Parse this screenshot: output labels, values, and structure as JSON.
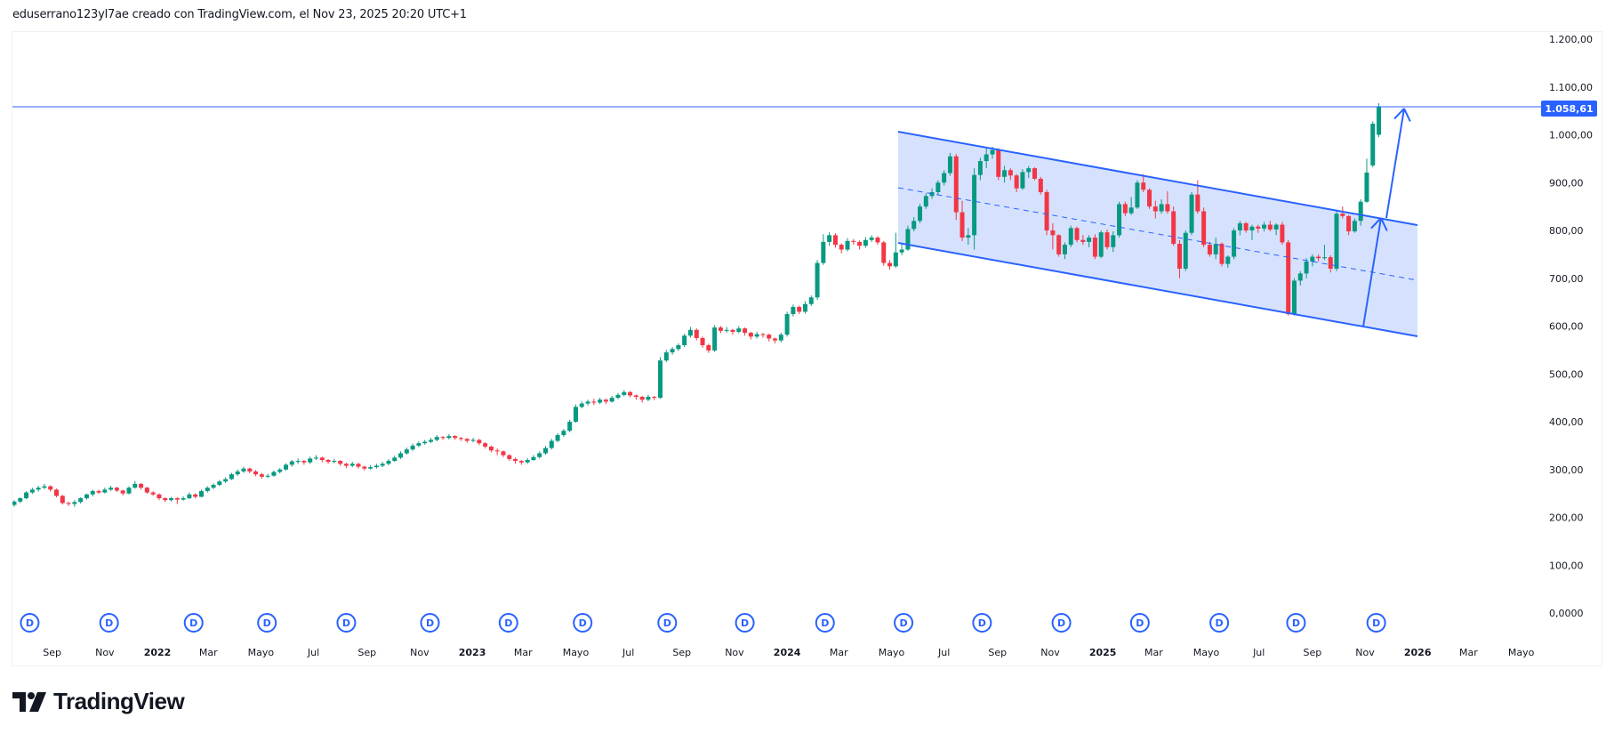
{
  "header": {
    "caption": "eduserrano123yl7ae creado con TradingView.com, el Nov 23, 2025 20:20 UTC+1"
  },
  "footer": {
    "logo_text": "TradingView"
  },
  "colors": {
    "up": "#089981",
    "down": "#f23645",
    "drawing": "#2962ff",
    "channel_fill": "#d4e0fd"
  },
  "chart_data": {
    "type": "candlestick",
    "period": "1W",
    "from": "2021-07-19",
    "to": "2025-11-17",
    "ylim": [
      0,
      1200
    ],
    "grid": false,
    "current_price": {
      "value": 1058.61,
      "label": "1.058,61"
    },
    "y_ticks": [
      {
        "value": 1200,
        "label": "1.200,00"
      },
      {
        "value": 1100,
        "label": "1.100,00"
      },
      {
        "value": 1000,
        "label": "1.000,00"
      },
      {
        "value": 900,
        "label": "900,00"
      },
      {
        "value": 800,
        "label": "800,00"
      },
      {
        "value": 700,
        "label": "700,00"
      },
      {
        "value": 600,
        "label": "600,00"
      },
      {
        "value": 500,
        "label": "500,00"
      },
      {
        "value": 400,
        "label": "400,00"
      },
      {
        "value": 300,
        "label": "300,00"
      },
      {
        "value": 200,
        "label": "200,00"
      },
      {
        "value": 100,
        "label": "100,00"
      },
      {
        "value": 0,
        "label": "0,0000"
      }
    ],
    "x_ticks": [
      {
        "date": "2021-09-01",
        "label": "Sep"
      },
      {
        "date": "2021-11-01",
        "label": "Nov"
      },
      {
        "date": "2022-01-01",
        "label": "2022",
        "year": true
      },
      {
        "date": "2022-03-01",
        "label": "Mar"
      },
      {
        "date": "2022-05-01",
        "label": "Mayo"
      },
      {
        "date": "2022-07-01",
        "label": "Jul"
      },
      {
        "date": "2022-09-01",
        "label": "Sep"
      },
      {
        "date": "2022-11-01",
        "label": "Nov"
      },
      {
        "date": "2023-01-01",
        "label": "2023",
        "year": true
      },
      {
        "date": "2023-03-01",
        "label": "Mar"
      },
      {
        "date": "2023-05-01",
        "label": "Mayo"
      },
      {
        "date": "2023-07-01",
        "label": "Jul"
      },
      {
        "date": "2023-09-01",
        "label": "Sep"
      },
      {
        "date": "2023-11-01",
        "label": "Nov"
      },
      {
        "date": "2024-01-01",
        "label": "2024",
        "year": true
      },
      {
        "date": "2024-03-01",
        "label": "Mar"
      },
      {
        "date": "2024-05-01",
        "label": "Mayo"
      },
      {
        "date": "2024-07-01",
        "label": "Jul"
      },
      {
        "date": "2024-09-01",
        "label": "Sep"
      },
      {
        "date": "2024-11-01",
        "label": "Nov"
      },
      {
        "date": "2025-01-01",
        "label": "2025",
        "year": true
      },
      {
        "date": "2025-03-01",
        "label": "Mar"
      },
      {
        "date": "2025-05-01",
        "label": "Mayo"
      },
      {
        "date": "2025-07-01",
        "label": "Jul"
      },
      {
        "date": "2025-09-01",
        "label": "Sep"
      },
      {
        "date": "2025-11-01",
        "label": "Nov"
      },
      {
        "date": "2026-01-01",
        "label": "2026",
        "year": true
      },
      {
        "date": "2026-03-01",
        "label": "Mar"
      },
      {
        "date": "2026-05-01",
        "label": "Mayo"
      }
    ],
    "dividend_markers": {
      "label": "D",
      "dates": [
        "2021-08-06",
        "2021-11-06",
        "2022-02-12",
        "2022-05-08",
        "2022-08-08",
        "2022-11-13",
        "2023-02-12",
        "2023-05-09",
        "2023-08-15",
        "2023-11-13",
        "2024-02-14",
        "2024-05-15",
        "2024-08-14",
        "2024-11-14",
        "2025-02-13",
        "2025-05-16",
        "2025-08-13",
        "2025-11-14"
      ]
    },
    "ohlc": [
      [
        226,
        236,
        222,
        233
      ],
      [
        233,
        242,
        230,
        240
      ],
      [
        240,
        255,
        238,
        252
      ],
      [
        252,
        262,
        249,
        258
      ],
      [
        258,
        266,
        254,
        262
      ],
      [
        262,
        270,
        259,
        265
      ],
      [
        265,
        267,
        254,
        258
      ],
      [
        258,
        260,
        242,
        245
      ],
      [
        245,
        247,
        227,
        230
      ],
      [
        230,
        233,
        224,
        228
      ],
      [
        228,
        236,
        222,
        232
      ],
      [
        232,
        242,
        229,
        240
      ],
      [
        240,
        250,
        237,
        248
      ],
      [
        248,
        258,
        244,
        255
      ],
      [
        255,
        258,
        249,
        252
      ],
      [
        252,
        262,
        250,
        258
      ],
      [
        258,
        266,
        255,
        262
      ],
      [
        262,
        264,
        253,
        256
      ],
      [
        256,
        258,
        246,
        250
      ],
      [
        250,
        265,
        248,
        262
      ],
      [
        262,
        276,
        260,
        270
      ],
      [
        270,
        272,
        258,
        262
      ],
      [
        262,
        264,
        249,
        252
      ],
      [
        252,
        255,
        245,
        248
      ],
      [
        248,
        250,
        236,
        240
      ],
      [
        240,
        242,
        232,
        236
      ],
      [
        236,
        243,
        233,
        240
      ],
      [
        240,
        242,
        228,
        237
      ],
      [
        237,
        244,
        235,
        240
      ],
      [
        240,
        252,
        238,
        248
      ],
      [
        248,
        250,
        240,
        243
      ],
      [
        243,
        258,
        242,
        255
      ],
      [
        255,
        265,
        252,
        262
      ],
      [
        262,
        271,
        259,
        268
      ],
      [
        268,
        278,
        265,
        275
      ],
      [
        275,
        284,
        272,
        280
      ],
      [
        280,
        293,
        278,
        290
      ],
      [
        290,
        300,
        287,
        296
      ],
      [
        296,
        306,
        293,
        302
      ],
      [
        302,
        304,
        292,
        296
      ],
      [
        296,
        299,
        286,
        290
      ],
      [
        290,
        293,
        281,
        285
      ],
      [
        285,
        291,
        282,
        287
      ],
      [
        287,
        298,
        285,
        295
      ],
      [
        295,
        303,
        292,
        300
      ],
      [
        300,
        313,
        298,
        310
      ],
      [
        310,
        320,
        306,
        317
      ],
      [
        317,
        323,
        312,
        318
      ],
      [
        318,
        320,
        310,
        315
      ],
      [
        315,
        327,
        312,
        323
      ],
      [
        323,
        330,
        320,
        325
      ],
      [
        325,
        327,
        315,
        320
      ],
      [
        320,
        322,
        312,
        316
      ],
      [
        316,
        322,
        313,
        318
      ],
      [
        318,
        320,
        308,
        312
      ],
      [
        312,
        314,
        303,
        308
      ],
      [
        308,
        316,
        305,
        312
      ],
      [
        312,
        314,
        302,
        306
      ],
      [
        306,
        308,
        298,
        302
      ],
      [
        302,
        309,
        300,
        305
      ],
      [
        305,
        312,
        302,
        308
      ],
      [
        308,
        316,
        305,
        312
      ],
      [
        312,
        322,
        309,
        318
      ],
      [
        318,
        329,
        316,
        325
      ],
      [
        325,
        338,
        322,
        334
      ],
      [
        334,
        346,
        331,
        342
      ],
      [
        342,
        354,
        339,
        350
      ],
      [
        350,
        359,
        347,
        355
      ],
      [
        355,
        362,
        352,
        358
      ],
      [
        358,
        366,
        355,
        362
      ],
      [
        362,
        372,
        359,
        368
      ],
      [
        368,
        370,
        362,
        366
      ],
      [
        366,
        374,
        363,
        370
      ],
      [
        370,
        372,
        362,
        366
      ],
      [
        366,
        368,
        360,
        364
      ],
      [
        364,
        366,
        356,
        360
      ],
      [
        360,
        366,
        357,
        362
      ],
      [
        362,
        364,
        351,
        355
      ],
      [
        355,
        357,
        344,
        348
      ],
      [
        348,
        350,
        336,
        340
      ],
      [
        340,
        344,
        330,
        338
      ],
      [
        338,
        340,
        326,
        330
      ],
      [
        330,
        332,
        318,
        322
      ],
      [
        322,
        325,
        312,
        318
      ],
      [
        318,
        320,
        310,
        315
      ],
      [
        315,
        324,
        312,
        320
      ],
      [
        320,
        330,
        318,
        326
      ],
      [
        326,
        338,
        323,
        334
      ],
      [
        334,
        349,
        331,
        345
      ],
      [
        345,
        364,
        342,
        360
      ],
      [
        360,
        376,
        357,
        372
      ],
      [
        372,
        385,
        368,
        381
      ],
      [
        381,
        404,
        378,
        400
      ],
      [
        400,
        436,
        398,
        431
      ],
      [
        431,
        442,
        428,
        438
      ],
      [
        438,
        446,
        434,
        442
      ],
      [
        442,
        448,
        435,
        440
      ],
      [
        440,
        450,
        437,
        446
      ],
      [
        446,
        448,
        437,
        442
      ],
      [
        442,
        454,
        440,
        450
      ],
      [
        450,
        460,
        447,
        456
      ],
      [
        456,
        466,
        453,
        462
      ],
      [
        462,
        464,
        451,
        455
      ],
      [
        455,
        457,
        446,
        452
      ],
      [
        452,
        454,
        440,
        446
      ],
      [
        446,
        456,
        443,
        452
      ],
      [
        452,
        454,
        445,
        450
      ],
      [
        450,
        535,
        448,
        528
      ],
      [
        528,
        550,
        525,
        545
      ],
      [
        545,
        556,
        540,
        552
      ],
      [
        552,
        564,
        548,
        560
      ],
      [
        560,
        584,
        556,
        580
      ],
      [
        580,
        598,
        576,
        592
      ],
      [
        592,
        595,
        570,
        575
      ],
      [
        575,
        578,
        555,
        560
      ],
      [
        560,
        563,
        544,
        549
      ],
      [
        549,
        602,
        546,
        597
      ],
      [
        597,
        600,
        585,
        590
      ],
      [
        590,
        598,
        586,
        592
      ],
      [
        592,
        594,
        582,
        588
      ],
      [
        588,
        600,
        585,
        595
      ],
      [
        595,
        597,
        580,
        586
      ],
      [
        586,
        588,
        572,
        578
      ],
      [
        578,
        588,
        574,
        583
      ],
      [
        583,
        586,
        576,
        582
      ],
      [
        582,
        584,
        568,
        574
      ],
      [
        574,
        576,
        564,
        570
      ],
      [
        570,
        586,
        566,
        582
      ],
      [
        582,
        630,
        578,
        625
      ],
      [
        625,
        645,
        620,
        640
      ],
      [
        640,
        643,
        625,
        630
      ],
      [
        630,
        652,
        626,
        646
      ],
      [
        646,
        664,
        642,
        660
      ],
      [
        660,
        738,
        655,
        732
      ],
      [
        732,
        792,
        728,
        776
      ],
      [
        776,
        796,
        768,
        790
      ],
      [
        790,
        794,
        764,
        770
      ],
      [
        770,
        773,
        752,
        760
      ],
      [
        760,
        784,
        756,
        778
      ],
      [
        778,
        782,
        770,
        776
      ],
      [
        776,
        779,
        760,
        768
      ],
      [
        768,
        786,
        764,
        780
      ],
      [
        780,
        790,
        776,
        785
      ],
      [
        785,
        788,
        770,
        775
      ],
      [
        775,
        778,
        726,
        732
      ],
      [
        732,
        738,
        718,
        725
      ],
      [
        725,
        795,
        722,
        754
      ],
      [
        754,
        772,
        748,
        760
      ],
      [
        760,
        810,
        757,
        803
      ],
      [
        803,
        828,
        798,
        820
      ],
      [
        820,
        856,
        815,
        850
      ],
      [
        850,
        878,
        845,
        872
      ],
      [
        872,
        888,
        866,
        880
      ],
      [
        880,
        905,
        874,
        900
      ],
      [
        900,
        926,
        894,
        920
      ],
      [
        920,
        962,
        914,
        955
      ],
      [
        955,
        960,
        822,
        838
      ],
      [
        838,
        862,
        778,
        785
      ],
      [
        785,
        805,
        770,
        790
      ],
      [
        790,
        930,
        760,
        916
      ],
      [
        916,
        952,
        905,
        945
      ],
      [
        945,
        972,
        930,
        959
      ],
      [
        959,
        975,
        950,
        968
      ],
      [
        968,
        972,
        905,
        912
      ],
      [
        912,
        935,
        900,
        926
      ],
      [
        926,
        930,
        905,
        915
      ],
      [
        915,
        918,
        880,
        888
      ],
      [
        888,
        928,
        885,
        922
      ],
      [
        922,
        935,
        910,
        930
      ],
      [
        930,
        932,
        905,
        908
      ],
      [
        908,
        912,
        875,
        880
      ],
      [
        880,
        885,
        790,
        800
      ],
      [
        800,
        815,
        760,
        790
      ],
      [
        790,
        792,
        745,
        750
      ],
      [
        750,
        775,
        740,
        770
      ],
      [
        770,
        810,
        765,
        805
      ],
      [
        805,
        808,
        775,
        780
      ],
      [
        780,
        790,
        770,
        776
      ],
      [
        776,
        790,
        765,
        785
      ],
      [
        785,
        792,
        740,
        745
      ],
      [
        745,
        800,
        742,
        796
      ],
      [
        796,
        802,
        760,
        765
      ],
      [
        765,
        798,
        755,
        790
      ],
      [
        790,
        860,
        785,
        855
      ],
      [
        855,
        860,
        830,
        836
      ],
      [
        836,
        870,
        832,
        848
      ],
      [
        848,
        905,
        845,
        900
      ],
      [
        900,
        918,
        880,
        885
      ],
      [
        885,
        888,
        845,
        850
      ],
      [
        850,
        862,
        825,
        840
      ],
      [
        840,
        865,
        835,
        855
      ],
      [
        855,
        882,
        835,
        840
      ],
      [
        840,
        850,
        768,
        772
      ],
      [
        772,
        780,
        700,
        720
      ],
      [
        720,
        800,
        715,
        795
      ],
      [
        795,
        880,
        790,
        875
      ],
      [
        875,
        905,
        835,
        840
      ],
      [
        840,
        848,
        765,
        770
      ],
      [
        770,
        776,
        745,
        750
      ],
      [
        750,
        785,
        740,
        772
      ],
      [
        772,
        775,
        725,
        730
      ],
      [
        730,
        748,
        722,
        745
      ],
      [
        745,
        805,
        740,
        800
      ],
      [
        800,
        820,
        790,
        815
      ],
      [
        815,
        818,
        795,
        800
      ],
      [
        800,
        812,
        780,
        808
      ],
      [
        808,
        812,
        795,
        804
      ],
      [
        804,
        818,
        798,
        812
      ],
      [
        812,
        820,
        798,
        802
      ],
      [
        802,
        815,
        790,
        812
      ],
      [
        812,
        818,
        770,
        775
      ],
      [
        775,
        780,
        622,
        625
      ],
      [
        625,
        700,
        622,
        695
      ],
      [
        695,
        715,
        685,
        710
      ],
      [
        710,
        742,
        700,
        735
      ],
      [
        735,
        750,
        725,
        745
      ],
      [
        745,
        750,
        735,
        742
      ],
      [
        742,
        770,
        738,
        744
      ],
      [
        744,
        748,
        712,
        720
      ],
      [
        720,
        842,
        715,
        835
      ],
      [
        835,
        850,
        825,
        830
      ],
      [
        830,
        832,
        790,
        798
      ],
      [
        798,
        825,
        795,
        820
      ],
      [
        820,
        865,
        810,
        860
      ],
      [
        860,
        950,
        858,
        921
      ],
      [
        936,
        1028,
        932,
        1023
      ],
      [
        1000,
        1066,
        995,
        1058
      ]
    ]
  }
}
